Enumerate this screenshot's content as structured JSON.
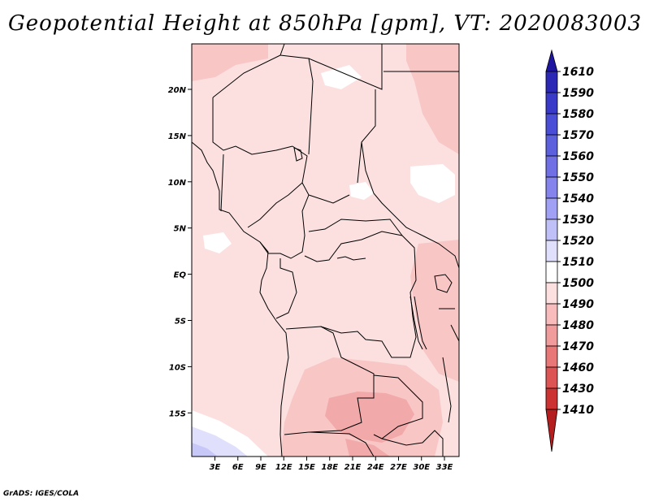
{
  "title": "Geopotential Height at 850hPa [gpm], VT: 2020083003",
  "credit": "GrADS: IGES/COLA",
  "map": {
    "lat_labels": [
      "20N",
      "15N",
      "10N",
      "5N",
      "EQ",
      "5S",
      "10S",
      "15S"
    ],
    "lon_labels": [
      "3E",
      "6E",
      "9E",
      "12E",
      "15E",
      "18E",
      "21E",
      "24E",
      "27E",
      "30E",
      "33E"
    ],
    "background_fill": "#fce0e0",
    "border_color": "#000000"
  },
  "colorbar": {
    "levels": [
      "1610",
      "1590",
      "1580",
      "1570",
      "1560",
      "1550",
      "1540",
      "1530",
      "1520",
      "1510",
      "1500",
      "1490",
      "1480",
      "1470",
      "1460",
      "1430",
      "1410"
    ],
    "colors": [
      "#1e16a0",
      "#2a28b4",
      "#3a3ac8",
      "#4a4ed6",
      "#5c60dc",
      "#7070e4",
      "#8484ec",
      "#a0a0f4",
      "#c0c0f8",
      "#e0e0fc",
      "#ffffff",
      "#fce0e0",
      "#f8bcbc",
      "#f09c9c",
      "#e87878",
      "#dc5454",
      "#cc3232",
      "#b41e1e"
    ]
  }
}
